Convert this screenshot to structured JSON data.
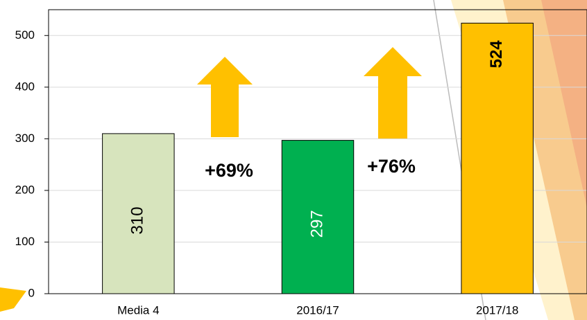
{
  "chart_data": {
    "type": "bar",
    "categories": [
      "Media 4",
      "2016/17",
      "2017/18"
    ],
    "values": [
      310,
      297,
      524
    ],
    "colors": [
      "#d7e4bd",
      "#00b050",
      "#ffc000"
    ],
    "ylim": [
      0,
      550
    ],
    "yticks": [
      0,
      100,
      200,
      300,
      400,
      500
    ],
    "grid": true,
    "annotations": [
      "+69%",
      "+76%"
    ]
  }
}
